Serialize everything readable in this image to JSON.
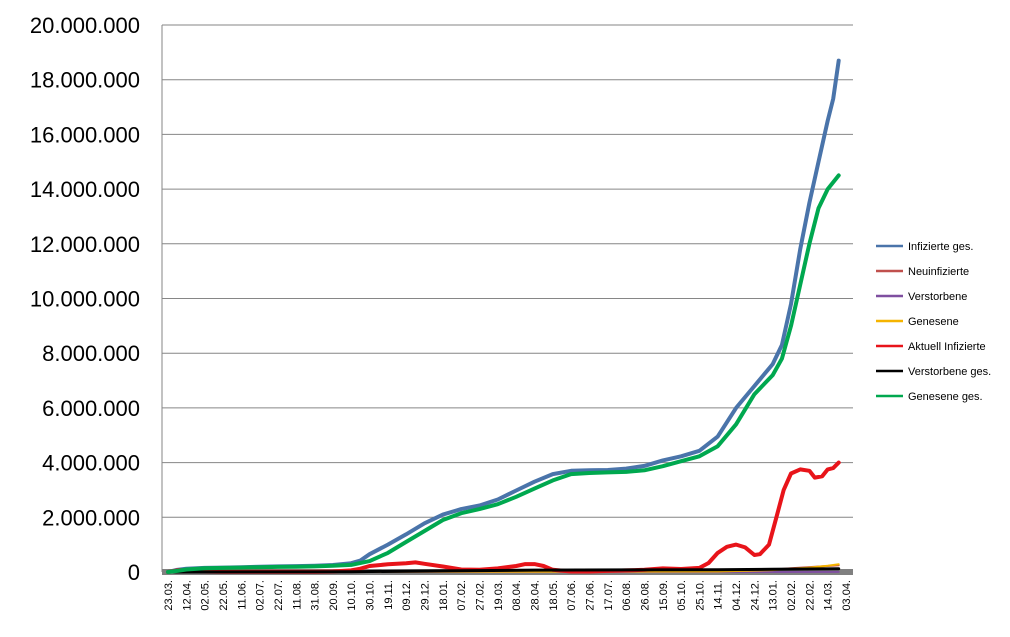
{
  "chart_data": {
    "type": "line",
    "title": "",
    "xlabel": "",
    "ylabel": "",
    "ylim": [
      0,
      20000000
    ],
    "yticks": [
      0,
      2000000,
      4000000,
      6000000,
      8000000,
      10000000,
      12000000,
      14000000,
      16000000,
      18000000,
      20000000
    ],
    "ytick_labels": [
      "0",
      "2.000.000",
      "4.000.000",
      "6.000.000",
      "8.000.000",
      "10.000.000",
      "12.000.000",
      "14.000.000",
      "16.000.000",
      "18.000.000",
      "20.000.000"
    ],
    "x_tick_labels": [
      "23.03.",
      "12.04.",
      "02.05.",
      "22.05.",
      "11.06.",
      "02.07.",
      "22.07.",
      "11.08.",
      "31.08.",
      "20.09.",
      "10.10.",
      "30.10.",
      "19.11.",
      "09.12.",
      "29.12.",
      "18.01.",
      "07.02.",
      "27.02.",
      "19.03.",
      "08.04.",
      "28.04.",
      "18.05.",
      "07.06.",
      "27.06.",
      "17.07.",
      "06.08.",
      "26.08.",
      "15.09.",
      "05.10.",
      "25.10.",
      "14.11.",
      "04.12.",
      "24.12.",
      "13.01.",
      "02.02.",
      "22.02.",
      "14.03.",
      "03.04."
    ],
    "x_range": [
      0,
      37
    ],
    "grid": "horizontal",
    "legend_position": "right",
    "series": [
      {
        "name": "Infizierte ges.",
        "color": "#4A74AA",
        "width": 4,
        "points": [
          [
            0,
            0
          ],
          [
            0.5,
            80000
          ],
          [
            1,
            120000
          ],
          [
            2,
            150000
          ],
          [
            3,
            160000
          ],
          [
            4,
            175000
          ],
          [
            5,
            190000
          ],
          [
            6,
            205000
          ],
          [
            7,
            215000
          ],
          [
            8,
            230000
          ],
          [
            9,
            255000
          ],
          [
            10,
            320000
          ],
          [
            10.5,
            420000
          ],
          [
            11,
            650000
          ],
          [
            12,
            1000000
          ],
          [
            13,
            1380000
          ],
          [
            14,
            1780000
          ],
          [
            15,
            2100000
          ],
          [
            16,
            2300000
          ],
          [
            17,
            2430000
          ],
          [
            18,
            2650000
          ],
          [
            19,
            2980000
          ],
          [
            20,
            3300000
          ],
          [
            21,
            3580000
          ],
          [
            22,
            3700000
          ],
          [
            23,
            3720000
          ],
          [
            24,
            3730000
          ],
          [
            25,
            3780000
          ],
          [
            26,
            3880000
          ],
          [
            27,
            4080000
          ],
          [
            28,
            4230000
          ],
          [
            29,
            4430000
          ],
          [
            30,
            4950000
          ],
          [
            31,
            6000000
          ],
          [
            32,
            6800000
          ],
          [
            33,
            7600000
          ],
          [
            33.5,
            8300000
          ],
          [
            34,
            9800000
          ],
          [
            34.5,
            11800000
          ],
          [
            35,
            13500000
          ],
          [
            35.5,
            15000000
          ],
          [
            36,
            16500000
          ],
          [
            36.3,
            17300000
          ],
          [
            36.6,
            18700000
          ]
        ]
      },
      {
        "name": "Neuinfizierte",
        "color": "#C0504D",
        "width": 2,
        "points": [
          [
            0,
            0
          ],
          [
            5,
            3000
          ],
          [
            10,
            8000
          ],
          [
            15,
            20000
          ],
          [
            20,
            15000
          ],
          [
            25,
            5000
          ],
          [
            30,
            20000
          ],
          [
            33,
            80000
          ],
          [
            34,
            140000
          ],
          [
            35,
            180000
          ],
          [
            36,
            220000
          ],
          [
            36.6,
            250000
          ]
        ]
      },
      {
        "name": "Verstorbene",
        "color": "#7F4FA0",
        "width": 2,
        "points": [
          [
            0,
            0
          ],
          [
            10,
            500
          ],
          [
            20,
            800
          ],
          [
            30,
            1000
          ],
          [
            36.6,
            2000
          ]
        ]
      },
      {
        "name": "Genesene",
        "color": "#F5B400",
        "width": 2,
        "points": [
          [
            0,
            0
          ],
          [
            10,
            6000
          ],
          [
            20,
            12000
          ],
          [
            30,
            18000
          ],
          [
            33,
            70000
          ],
          [
            34,
            120000
          ],
          [
            35,
            160000
          ],
          [
            36,
            230000
          ],
          [
            36.6,
            280000
          ]
        ]
      },
      {
        "name": "Aktuell Infizierte",
        "color": "#E8141A",
        "width": 4,
        "points": [
          [
            0,
            0
          ],
          [
            0.6,
            70000
          ],
          [
            1,
            60000
          ],
          [
            2,
            20000
          ],
          [
            3,
            10000
          ],
          [
            4,
            8000
          ],
          [
            5,
            6000
          ],
          [
            6,
            6000
          ],
          [
            7,
            8000
          ],
          [
            8,
            10000
          ],
          [
            9,
            20000
          ],
          [
            10,
            60000
          ],
          [
            10.5,
            120000
          ],
          [
            11,
            220000
          ],
          [
            12,
            280000
          ],
          [
            13,
            320000
          ],
          [
            13.5,
            350000
          ],
          [
            14,
            300000
          ],
          [
            15,
            200000
          ],
          [
            16,
            90000
          ],
          [
            17,
            80000
          ],
          [
            18,
            130000
          ],
          [
            19,
            220000
          ],
          [
            19.5,
            290000
          ],
          [
            20,
            290000
          ],
          [
            20.5,
            220000
          ],
          [
            21,
            80000
          ],
          [
            22,
            20000
          ],
          [
            23,
            20000
          ],
          [
            24,
            40000
          ],
          [
            25,
            60000
          ],
          [
            26,
            80000
          ],
          [
            27,
            130000
          ],
          [
            28,
            110000
          ],
          [
            29,
            150000
          ],
          [
            29.5,
            330000
          ],
          [
            30,
            700000
          ],
          [
            30.5,
            920000
          ],
          [
            31,
            1000000
          ],
          [
            31.5,
            900000
          ],
          [
            32,
            620000
          ],
          [
            32.3,
            650000
          ],
          [
            32.8,
            1000000
          ],
          [
            33.2,
            2000000
          ],
          [
            33.6,
            3000000
          ],
          [
            34,
            3600000
          ],
          [
            34.5,
            3750000
          ],
          [
            35,
            3700000
          ],
          [
            35.3,
            3450000
          ],
          [
            35.7,
            3500000
          ],
          [
            36,
            3750000
          ],
          [
            36.3,
            3800000
          ],
          [
            36.6,
            4000000
          ]
        ]
      },
      {
        "name": "Verstorbene ges.",
        "color": "#000000",
        "width": 3,
        "points": [
          [
            0,
            0
          ],
          [
            5,
            5000
          ],
          [
            10,
            10000
          ],
          [
            15,
            40000
          ],
          [
            20,
            70000
          ],
          [
            25,
            75000
          ],
          [
            30,
            85000
          ],
          [
            33,
            100000
          ],
          [
            36.6,
            120000
          ]
        ]
      },
      {
        "name": "Genesene ges.",
        "color": "#00A84F",
        "width": 4,
        "points": [
          [
            0,
            0
          ],
          [
            0.5,
            40000
          ],
          [
            1,
            90000
          ],
          [
            2,
            140000
          ],
          [
            3,
            150000
          ],
          [
            4,
            160000
          ],
          [
            5,
            175000
          ],
          [
            6,
            185000
          ],
          [
            7,
            195000
          ],
          [
            8,
            205000
          ],
          [
            9,
            230000
          ],
          [
            10,
            260000
          ],
          [
            11,
            400000
          ],
          [
            12,
            700000
          ],
          [
            13,
            1100000
          ],
          [
            14,
            1500000
          ],
          [
            15,
            1900000
          ],
          [
            16,
            2150000
          ],
          [
            17,
            2300000
          ],
          [
            18,
            2480000
          ],
          [
            19,
            2750000
          ],
          [
            20,
            3050000
          ],
          [
            21,
            3350000
          ],
          [
            22,
            3580000
          ],
          [
            23,
            3620000
          ],
          [
            24,
            3640000
          ],
          [
            25,
            3660000
          ],
          [
            26,
            3720000
          ],
          [
            27,
            3870000
          ],
          [
            28,
            4050000
          ],
          [
            29,
            4230000
          ],
          [
            30,
            4600000
          ],
          [
            31,
            5400000
          ],
          [
            32,
            6500000
          ],
          [
            33,
            7200000
          ],
          [
            33.5,
            7800000
          ],
          [
            34,
            9000000
          ],
          [
            34.5,
            10500000
          ],
          [
            35,
            12000000
          ],
          [
            35.5,
            13300000
          ],
          [
            36,
            14000000
          ],
          [
            36.6,
            14500000
          ]
        ]
      }
    ]
  }
}
